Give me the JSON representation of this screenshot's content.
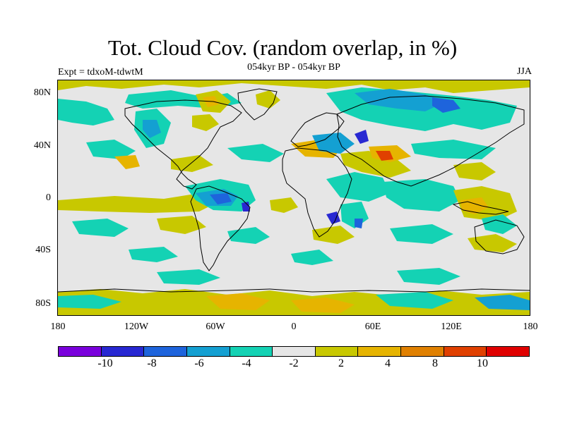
{
  "title": "Tot. Cloud Cov. (random overlap, in %)",
  "subtitle": "054kyr BP - 054kyr BP",
  "experiment_label": "Expt = tdxoM-tdwtM",
  "season_label": "JJA",
  "map": {
    "background_color": "#e6e6e6",
    "coastline_color": "#000000",
    "y_ticks": [
      "80N",
      "40N",
      "0",
      "40S",
      "80S"
    ],
    "x_ticks": [
      "180",
      "120W",
      "60W",
      "0",
      "60E",
      "120E",
      "180"
    ]
  },
  "colorbar": {
    "colors": [
      "#7a00dc",
      "#2828d2",
      "#1e64dc",
      "#14a0d2",
      "#14d2b4",
      "#e6e6e6",
      "#c8c800",
      "#e6b400",
      "#e08000",
      "#e04000",
      "#e00000"
    ],
    "labels": [
      "-10",
      "-8",
      "-6",
      "-4",
      "-2",
      "2",
      "4",
      "8",
      "10"
    ]
  }
}
